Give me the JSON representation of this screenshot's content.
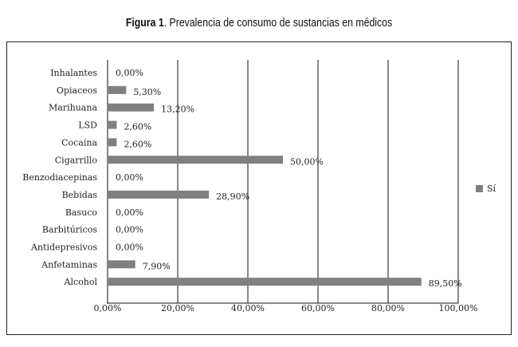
{
  "chart_data": {
    "type": "bar",
    "orientation": "horizontal",
    "title_prefix": "Figura 1",
    "title": ". Prevalencia de consumo de sustancias en médicos",
    "categories": [
      "Inhalantes",
      "Opiaceos",
      "Marihuana",
      "LSD",
      "Cocaína",
      "Cigarrillo",
      "Benzodiacepinas",
      "Bebidas",
      "Basuco",
      "Barbitúricos",
      "Antidepresivos",
      "Anfetaminas",
      "Alcohol"
    ],
    "series": [
      {
        "name": "Sí",
        "values": [
          0,
          5.3,
          13.2,
          2.6,
          2.6,
          50,
          0,
          28.9,
          0,
          0,
          0,
          7.9,
          89.5
        ],
        "color": "#808080"
      }
    ],
    "data_labels": [
      "0,00%",
      "5,30%",
      "13,20%",
      "2,60%",
      "2,60%",
      "50,00%",
      "0,00%",
      "28,90%",
      "0,00%",
      "0,00%",
      "0,00%",
      "7,90%",
      "89,50%"
    ],
    "xlim": [
      0,
      100
    ],
    "xticks": [
      0,
      20,
      40,
      60,
      80,
      100
    ],
    "xtick_labels": [
      "0,00%",
      "20,00%",
      "40,00%",
      "60,00%",
      "80,00%",
      "100,00%"
    ],
    "grid": "vertical",
    "legend": "right"
  }
}
